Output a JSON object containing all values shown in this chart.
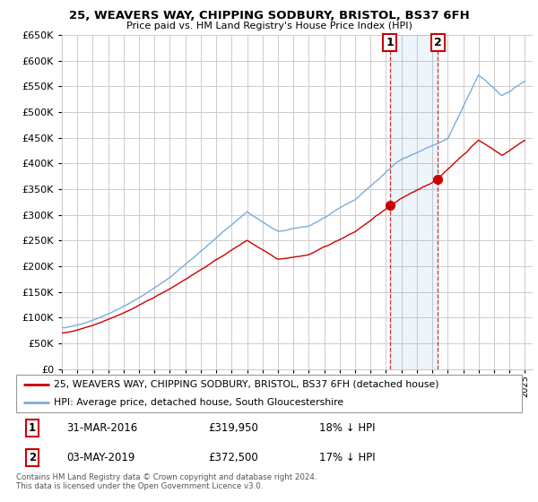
{
  "title": "25, WEAVERS WAY, CHIPPING SODBURY, BRISTOL, BS37 6FH",
  "subtitle": "Price paid vs. HM Land Registry's House Price Index (HPI)",
  "ylim": [
    0,
    650000
  ],
  "yticks": [
    0,
    50000,
    100000,
    150000,
    200000,
    250000,
    300000,
    350000,
    400000,
    450000,
    500000,
    550000,
    600000,
    650000
  ],
  "hpi_color": "#7aadda",
  "price_color": "#cc0000",
  "marker1_year": 2016.25,
  "marker2_year": 2019.37,
  "marker1_price": 319950,
  "marker2_price": 372500,
  "legend1": "25, WEAVERS WAY, CHIPPING SODBURY, BRISTOL, BS37 6FH (detached house)",
  "legend2": "HPI: Average price, detached house, South Gloucestershire",
  "footer": "Contains HM Land Registry data © Crown copyright and database right 2024.\nThis data is licensed under the Open Government Licence v3.0.",
  "bg_color": "#ffffff",
  "grid_color": "#cccccc"
}
